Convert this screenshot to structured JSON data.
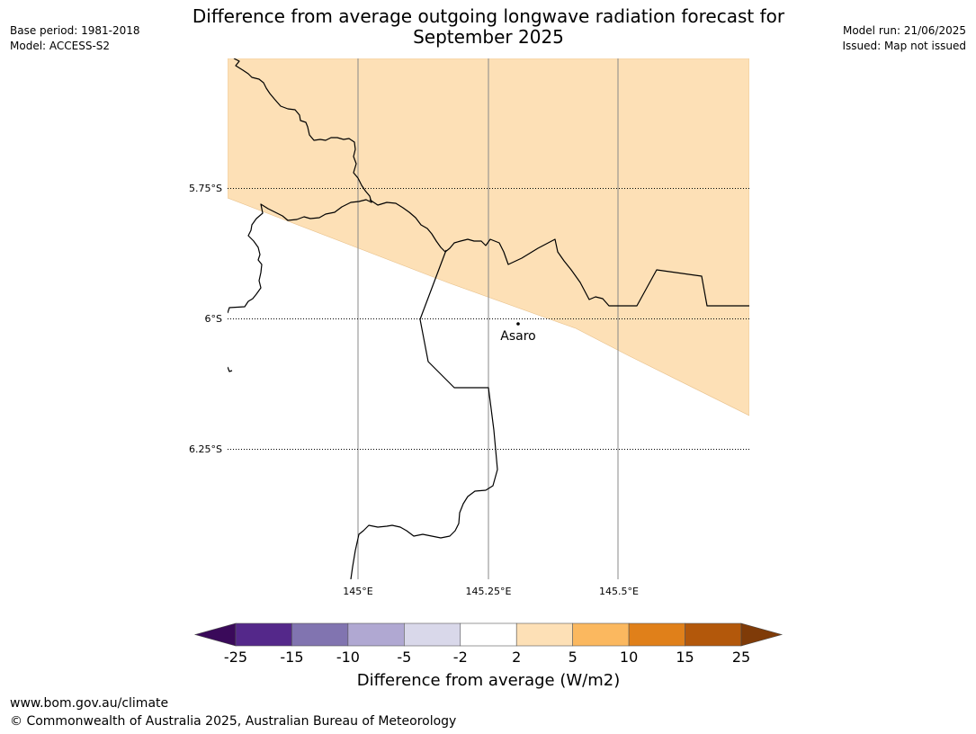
{
  "header": {
    "title_line1": "Difference from average outgoing longwave radiation forecast for",
    "title_line2": "September 2025",
    "base_period": "Base period: 1981-2018",
    "model": "Model: ACCESS-S2",
    "model_run": "Model run: 21/06/2025",
    "issued": "Issued: Map not issued"
  },
  "map": {
    "lat_labels": [
      "5.75°S",
      "6°S",
      "6.25°S"
    ],
    "lon_labels": [
      "145°E",
      "145.25°E",
      "145.5°E"
    ],
    "place": "Asaro",
    "anomaly_fill_color": "#fde0b6",
    "colors": {
      "border": "#000000",
      "meridian": "#888888"
    }
  },
  "colorbar": {
    "title": "Difference from average (W/m2)",
    "ticks": [
      "-25",
      "-15",
      "-10",
      "-5",
      "-2",
      "2",
      "5",
      "10",
      "15",
      "25"
    ],
    "colors": [
      "#3a0a5a",
      "#54288a",
      "#8174b0",
      "#b0a8d2",
      "#d9d8ea",
      "#ffffff",
      "#fde0b6",
      "#fbb85f",
      "#e0801a",
      "#b3580b",
      "#7f3b08"
    ]
  },
  "footer": {
    "url": "www.bom.gov.au/climate",
    "copyright": "© Commonwealth of Australia 2025, Australian Bureau of Meteorology"
  }
}
